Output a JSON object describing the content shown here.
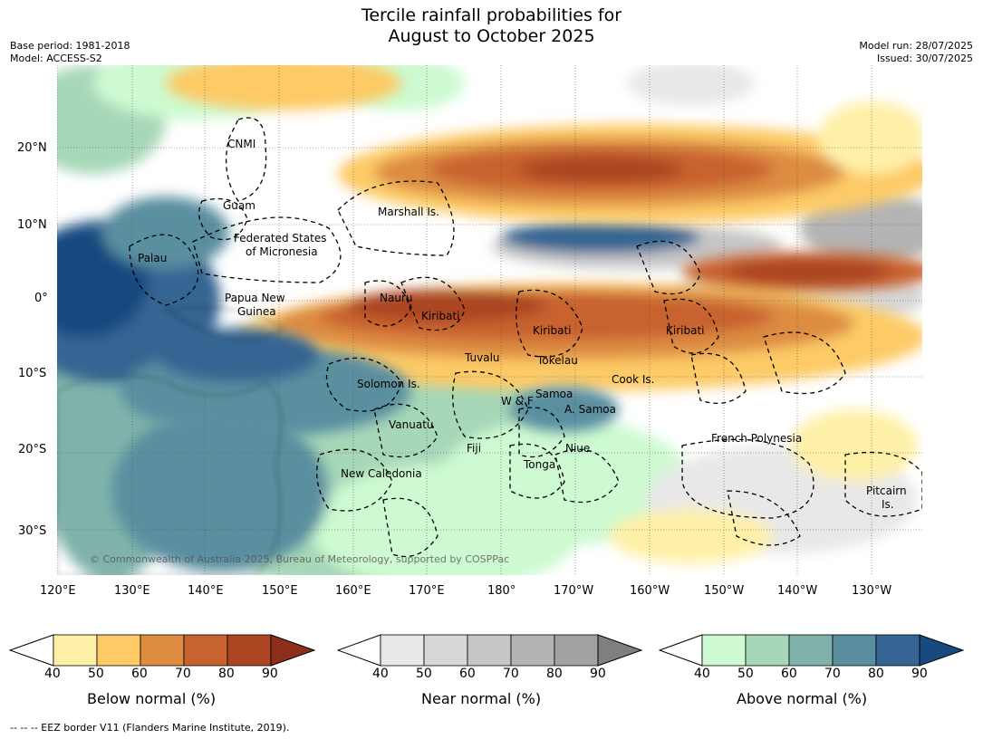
{
  "title_line1": "Tercile rainfall probabilities for",
  "title_line2": "August to October 2025",
  "meta_left": [
    "Base period: 1981-2018",
    "Model: ACCESS-S2"
  ],
  "meta_right": [
    "Model run: 28/07/2025",
    "Issued: 30/07/2025"
  ],
  "credit": "© Commonwealth of Australia 2025, Bureau of Meteorology, supported by COSPPac",
  "lat_ticks": [
    "20°N",
    "10°N",
    "0°",
    "10°S",
    "20°S",
    "30°S"
  ],
  "lon_ticks": [
    "120°E",
    "130°E",
    "140°E",
    "150°E",
    "160°E",
    "170°E",
    "180°",
    "170°W",
    "160°W",
    "150°W",
    "140°W",
    "130°W"
  ],
  "places": [
    "CNMI",
    "Guam",
    "Marshall Is.",
    "Federated States",
    "of Micronesia",
    "Palau",
    "Papua New",
    "Guinea",
    "Nauru",
    "Kiribati",
    "Kiribati",
    "Kiribati",
    "Tuvalu",
    "Tokelau",
    "Solomon Is.",
    "Cook Is.",
    "Samoa",
    "W & F",
    "A. Samoa",
    "Vanuatu",
    "Fiji",
    "Niue",
    "French Polynesia",
    "Tonga",
    "New Caledonia",
    "Pitcairn",
    "Is."
  ],
  "colorbars": [
    {
      "label": "Below normal (%)",
      "colors": [
        "#fff0a8",
        "#fdca66",
        "#dd8c42",
        "#c8622e",
        "#ab4522",
        "#8c2e1a"
      ]
    },
    {
      "label": "Near normal (%)",
      "colors": [
        "#e8e8e8",
        "#d7d7d7",
        "#c6c6c6",
        "#b4b4b4",
        "#a2a2a2",
        "#7f7f7f"
      ]
    },
    {
      "label": "Above normal (%)",
      "colors": [
        "#cdfad0",
        "#a6d7b8",
        "#7fb3aa",
        "#5a8fa0",
        "#356593",
        "#174a80"
      ]
    }
  ],
  "cb_ticks": [
    "40",
    "50",
    "60",
    "70",
    "80",
    "90"
  ],
  "footnote": "--  --  -- EEZ border V11 (Flanders Marine Institute, 2019)."
}
